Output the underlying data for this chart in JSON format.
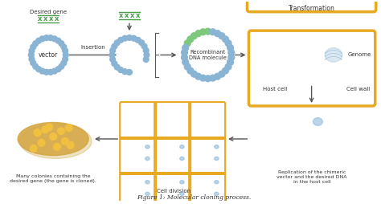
{
  "bg_color": "#ffffff",
  "arrow_color": "#555555",
  "bead_color": "#8ab4d4",
  "gene_color_dark": "#4a9e4a",
  "gene_color_light": "#7ec87e",
  "host_box_color": "#e8a820",
  "petri_edge_color": "#b8860b",
  "petri_fill_color": "#d4a540",
  "colony_color": "#f0c040",
  "label_color": "#333333",
  "genome_fill": "#7bafd4",
  "labels": {
    "desired_gene": "Desired gene",
    "vector": "vector",
    "insertion": "Insertion",
    "recombinant": "Recombinant\nDNA molecule",
    "transformation": "Transformation",
    "genome": "Genome",
    "host_cell": "Host cell",
    "cell_wall": "Cell wall",
    "replication": "Replication of the chimeric\nvector and the desired DNA\nin the host cell",
    "cell_division": "Cell division",
    "many_colonies": "Many colonies containing the\ndesired gene (the gene is cloned).",
    "figure_caption": "Figure 1: Molecular cloning process."
  }
}
